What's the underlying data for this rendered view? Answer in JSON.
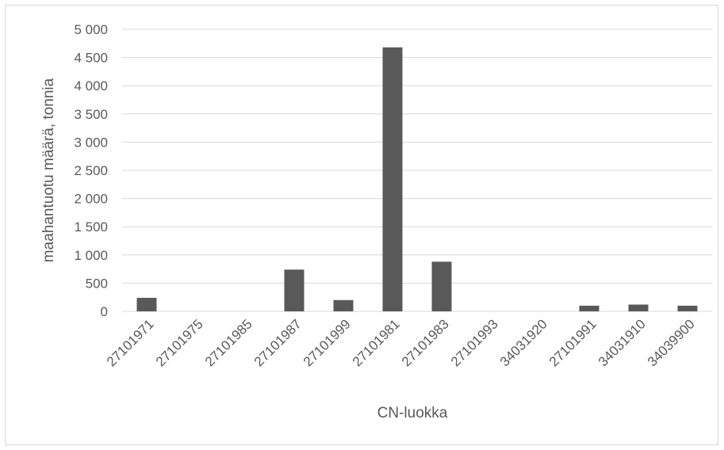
{
  "chart_data": {
    "type": "bar",
    "categories": [
      "27101971",
      "27101975",
      "27101985",
      "27101987",
      "27101999",
      "27101981",
      "27101983",
      "27101993",
      "34031920",
      "27101991",
      "34031910",
      "34039900"
    ],
    "values": [
      240,
      0,
      0,
      740,
      200,
      4680,
      880,
      0,
      0,
      100,
      120,
      100
    ],
    "yticks": [
      "0",
      "500",
      "1 000",
      "1 500",
      "2 000",
      "2 500",
      "3 000",
      "3 500",
      "4 000",
      "4 500",
      "5 000"
    ],
    "xlabel": "CN-luokka",
    "ylabel": "maahantuotu määrä, tonnia",
    "ylim": [
      0,
      5000
    ],
    "grid": true,
    "bar_color": "#595959",
    "grid_color": "#d9d9d9"
  }
}
